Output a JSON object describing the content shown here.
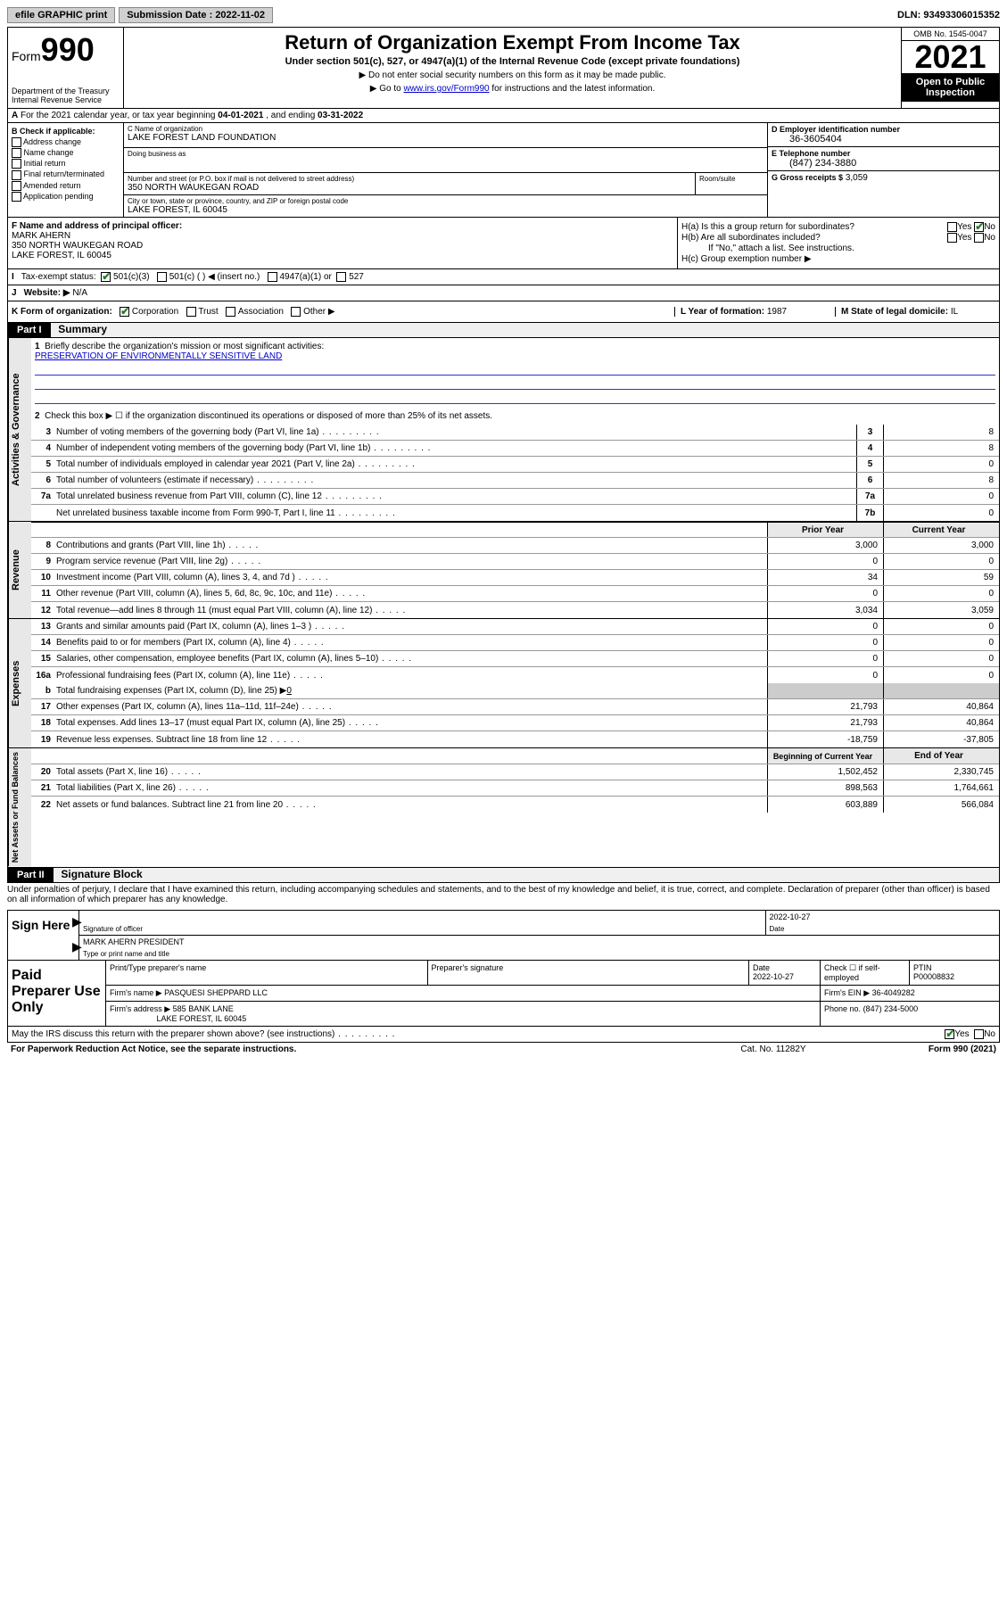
{
  "topbar": {
    "efile_label": "efile GRAPHIC print",
    "submission_label": "Submission Date : 2022-11-02",
    "dln_label": "DLN: 93493306015352"
  },
  "header": {
    "form_prefix": "Form",
    "form_number": "990",
    "dept": "Department of the Treasury\nInternal Revenue Service",
    "title": "Return of Organization Exempt From Income Tax",
    "subtitle": "Under section 501(c), 527, or 4947(a)(1) of the Internal Revenue Code (except private foundations)",
    "note1": "▶ Do not enter social security numbers on this form as it may be made public.",
    "note2_pre": "▶ Go to ",
    "note2_link": "www.irs.gov/Form990",
    "note2_post": " for instructions and the latest information.",
    "omb": "OMB No. 1545-0047",
    "year": "2021",
    "inspection": "Open to Public Inspection"
  },
  "row_a": {
    "text_pre": "For the 2021 calendar year, or tax year beginning ",
    "begin": "04-01-2021",
    "mid": " , and ending ",
    "end": "03-31-2022"
  },
  "section_b": {
    "label": "B Check if applicable:",
    "items": [
      "Address change",
      "Name change",
      "Initial return",
      "Final return/terminated",
      "Amended return",
      "Application pending"
    ]
  },
  "section_c": {
    "name_label": "C Name of organization",
    "name": "LAKE FOREST LAND FOUNDATION",
    "dba_label": "Doing business as",
    "dba": "",
    "street_label": "Number and street (or P.O. box if mail is not delivered to street address)",
    "street": "350 NORTH WAUKEGAN ROAD",
    "room_label": "Room/suite",
    "room": "",
    "city_label": "City or town, state or province, country, and ZIP or foreign postal code",
    "city": "LAKE FOREST, IL  60045"
  },
  "section_d": {
    "ein_label": "D Employer identification number",
    "ein": "36-3605404",
    "phone_label": "E Telephone number",
    "phone": "(847) 234-3880",
    "gross_label": "G Gross receipts $",
    "gross": "3,059"
  },
  "section_f": {
    "label": "F Name and address of principal officer:",
    "name": "MARK AHERN",
    "addr1": "350 NORTH WAUKEGAN ROAD",
    "addr2": "LAKE FOREST, IL  60045"
  },
  "section_h": {
    "ha": "H(a)  Is this a group return for subordinates?",
    "hb": "H(b)  Are all subordinates included?",
    "hb_note": "If \"No,\" attach a list. See instructions.",
    "hc": "H(c)  Group exemption number ▶"
  },
  "row_i": {
    "lead": "I",
    "label": "Tax-exempt status:",
    "opt1": "501(c)(3)",
    "opt2": "501(c) (  ) ◀ (insert no.)",
    "opt3": "4947(a)(1) or",
    "opt4": "527"
  },
  "row_j": {
    "lead": "J",
    "label": "Website: ▶",
    "value": "N/A"
  },
  "row_k": {
    "label": "K Form of organization:",
    "opts": [
      "Corporation",
      "Trust",
      "Association",
      "Other ▶"
    ],
    "l_label": "L Year of formation:",
    "l_value": "1987",
    "m_label": "M State of legal domicile:",
    "m_value": "IL"
  },
  "part1": {
    "hdr": "Part I",
    "title": "Summary"
  },
  "governance": {
    "vtab": "Activities & Governance",
    "line1_label": "Briefly describe the organization's mission or most significant activities:",
    "line1_text": "PRESERVATION OF ENVIRONMENTALLY SENSITIVE LAND",
    "line2": "Check this box ▶ ☐  if the organization discontinued its operations or disposed of more than 25% of its net assets.",
    "lines": [
      {
        "n": "3",
        "t": "Number of voting members of the governing body (Part VI, line 1a)",
        "box": "3",
        "v": "8"
      },
      {
        "n": "4",
        "t": "Number of independent voting members of the governing body (Part VI, line 1b)",
        "box": "4",
        "v": "8"
      },
      {
        "n": "5",
        "t": "Total number of individuals employed in calendar year 2021 (Part V, line 2a)",
        "box": "5",
        "v": "0"
      },
      {
        "n": "6",
        "t": "Total number of volunteers (estimate if necessary)",
        "box": "6",
        "v": "8"
      },
      {
        "n": "7a",
        "t": "Total unrelated business revenue from Part VIII, column (C), line 12",
        "box": "7a",
        "v": "0"
      },
      {
        "n": "",
        "t": "Net unrelated business taxable income from Form 990-T, Part I, line 11",
        "box": "7b",
        "v": "0"
      }
    ]
  },
  "revenue": {
    "vtab": "Revenue",
    "hdr_prior": "Prior Year",
    "hdr_current": "Current Year",
    "lines": [
      {
        "n": "8",
        "t": "Contributions and grants (Part VIII, line 1h)",
        "p": "3,000",
        "c": "3,000"
      },
      {
        "n": "9",
        "t": "Program service revenue (Part VIII, line 2g)",
        "p": "0",
        "c": "0"
      },
      {
        "n": "10",
        "t": "Investment income (Part VIII, column (A), lines 3, 4, and 7d )",
        "p": "34",
        "c": "59"
      },
      {
        "n": "11",
        "t": "Other revenue (Part VIII, column (A), lines 5, 6d, 8c, 9c, 10c, and 11e)",
        "p": "0",
        "c": "0"
      },
      {
        "n": "12",
        "t": "Total revenue—add lines 8 through 11 (must equal Part VIII, column (A), line 12)",
        "p": "3,034",
        "c": "3,059"
      }
    ]
  },
  "expenses": {
    "vtab": "Expenses",
    "lines": [
      {
        "n": "13",
        "t": "Grants and similar amounts paid (Part IX, column (A), lines 1–3 )",
        "p": "0",
        "c": "0"
      },
      {
        "n": "14",
        "t": "Benefits paid to or for members (Part IX, column (A), line 4)",
        "p": "0",
        "c": "0"
      },
      {
        "n": "15",
        "t": "Salaries, other compensation, employee benefits (Part IX, column (A), lines 5–10)",
        "p": "0",
        "c": "0"
      },
      {
        "n": "16a",
        "t": "Professional fundraising fees (Part IX, column (A), line 11e)",
        "p": "0",
        "c": "0"
      }
    ],
    "line_b": "Total fundraising expenses (Part IX, column (D), line 25) ▶",
    "line_b_val": "0",
    "lines2": [
      {
        "n": "17",
        "t": "Other expenses (Part IX, column (A), lines 11a–11d, 11f–24e)",
        "p": "21,793",
        "c": "40,864"
      },
      {
        "n": "18",
        "t": "Total expenses. Add lines 13–17 (must equal Part IX, column (A), line 25)",
        "p": "21,793",
        "c": "40,864"
      },
      {
        "n": "19",
        "t": "Revenue less expenses. Subtract line 18 from line 12",
        "p": "-18,759",
        "c": "-37,805"
      }
    ]
  },
  "netassets": {
    "vtab": "Net Assets or Fund Balances",
    "hdr_begin": "Beginning of Current Year",
    "hdr_end": "End of Year",
    "lines": [
      {
        "n": "20",
        "t": "Total assets (Part X, line 16)",
        "p": "1,502,452",
        "c": "2,330,745"
      },
      {
        "n": "21",
        "t": "Total liabilities (Part X, line 26)",
        "p": "898,563",
        "c": "1,764,661"
      },
      {
        "n": "22",
        "t": "Net assets or fund balances. Subtract line 21 from line 20",
        "p": "603,889",
        "c": "566,084"
      }
    ]
  },
  "part2": {
    "hdr": "Part II",
    "title": "Signature Block",
    "declaration": "Under penalties of perjury, I declare that I have examined this return, including accompanying schedules and statements, and to the best of my knowledge and belief, it is true, correct, and complete. Declaration of preparer (other than officer) is based on all information of which preparer has any knowledge."
  },
  "sign": {
    "label": "Sign Here",
    "sig_label": "Signature of officer",
    "date": "2022-10-27",
    "date_label": "Date",
    "name": "MARK AHERN PRESIDENT",
    "name_label": "Type or print name and title"
  },
  "paid": {
    "label": "Paid Preparer Use Only",
    "h1": "Print/Type preparer's name",
    "h2": "Preparer's signature",
    "h3": "Date",
    "h3_val": "2022-10-27",
    "h4": "Check ☐ if self-employed",
    "h5": "PTIN",
    "h5_val": "P00008832",
    "firm_name_label": "Firm's name    ▶",
    "firm_name": "PASQUESI SHEPPARD LLC",
    "firm_ein_label": "Firm's EIN ▶",
    "firm_ein": "36-4049282",
    "firm_addr_label": "Firm's address ▶",
    "firm_addr1": "585 BANK LANE",
    "firm_addr2": "LAKE FOREST, IL  60045",
    "phone_label": "Phone no.",
    "phone": "(847) 234-5000"
  },
  "footer": {
    "discuss": "May the IRS discuss this return with the preparer shown above? (see instructions)",
    "paperwork": "For Paperwork Reduction Act Notice, see the separate instructions.",
    "cat": "Cat. No. 11282Y",
    "form": "Form 990 (2021)"
  }
}
